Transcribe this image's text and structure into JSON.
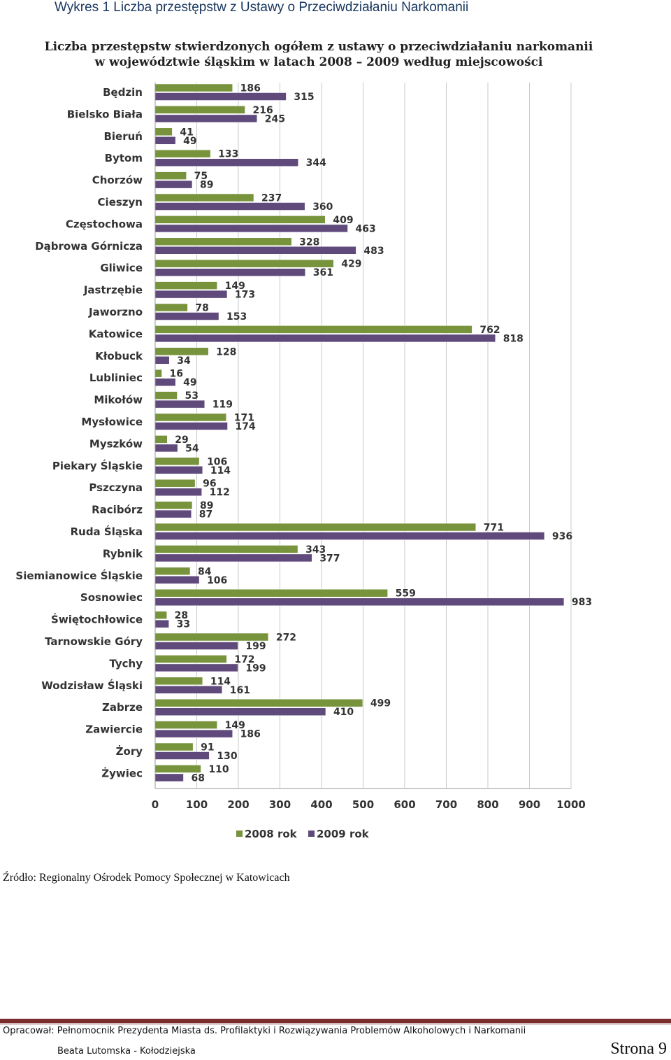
{
  "page": {
    "caption": "Wykres 1 Liczba przestępstw z Ustawy o Przeciwdziałaniu Narkomanii",
    "source": "Źródło: Regionalny Ośrodek Pomocy Społecznej w Katowicach",
    "footer": "Opracował: Pełnomocnik Prezydenta Miasta ds. Profilaktyki i Rozwiązywania Problemów Alkoholowych i Narkomanii",
    "author": "Beata Lutomska - Kołodziejska",
    "page_number": "Strona 9"
  },
  "chart_data": {
    "type": "bar",
    "orientation": "horizontal",
    "title_lines": [
      "Liczba przestępstw stwierdzonych ogółem z ustawy o przeciwdziałaniu narkomanii",
      "w województwie śląskim w latach 2008 – 2009 według miejscowości"
    ],
    "categories": [
      "Będzin",
      "Bielsko Biała",
      "Bieruń",
      "Bytom",
      "Chorzów",
      "Cieszyn",
      "Częstochowa",
      "Dąbrowa Górnicza",
      "Gliwice",
      "Jastrzębie",
      "Jaworzno",
      "Katowice",
      "Kłobuck",
      "Lubliniec",
      "Mikołów",
      "Mysłowice",
      "Myszków",
      "Piekary Śląskie",
      "Pszczyna",
      "Racibórz",
      "Ruda Śląska",
      "Rybnik",
      "Siemianowice Śląskie",
      "Sosnowiec",
      "Świętochłowice",
      "Tarnowskie Góry",
      "Tychy",
      "Wodzisław Śląski",
      "Zabrze",
      "Zawiercie",
      "Żory",
      "Żywiec"
    ],
    "series": [
      {
        "name": "2008 rok",
        "color": "#77933c",
        "values": [
          186,
          216,
          41,
          133,
          75,
          237,
          409,
          328,
          429,
          149,
          78,
          762,
          128,
          16,
          53,
          171,
          29,
          106,
          96,
          89,
          771,
          343,
          84,
          559,
          28,
          272,
          172,
          114,
          499,
          149,
          91,
          110
        ]
      },
      {
        "name": "2009 rok",
        "color": "#604a7b",
        "values": [
          315,
          245,
          49,
          344,
          89,
          360,
          463,
          483,
          361,
          173,
          153,
          818,
          34,
          49,
          119,
          174,
          54,
          114,
          112,
          87,
          936,
          377,
          106,
          983,
          33,
          199,
          199,
          161,
          410,
          186,
          130,
          68
        ]
      }
    ],
    "xlim": [
      0,
      1000
    ],
    "xticks": [
      "0",
      "100",
      "200",
      "300",
      "400",
      "500",
      "600",
      "700",
      "800",
      "900",
      "1000"
    ],
    "grid": true,
    "legend_position": "bottom"
  }
}
